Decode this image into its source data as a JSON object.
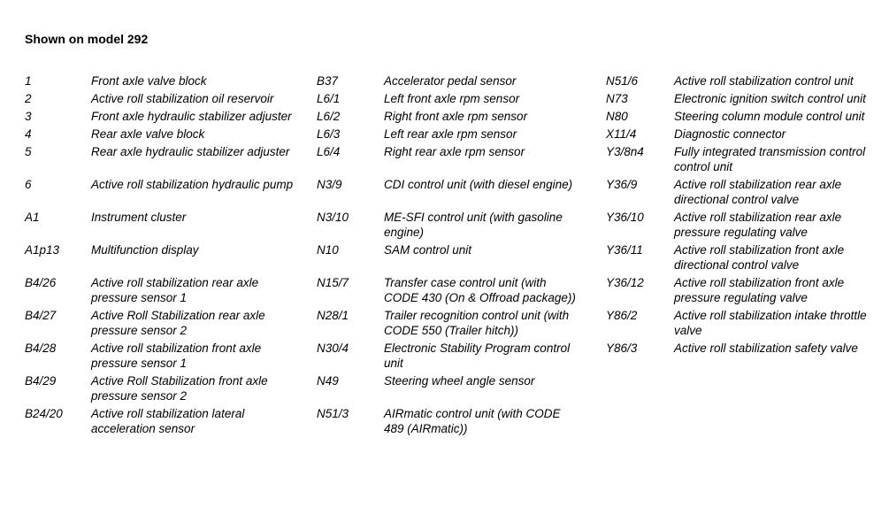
{
  "page": {
    "title": "Shown on model 292"
  },
  "legend": {
    "rows": [
      [
        {
          "code": "1",
          "desc": "Front axle valve block"
        },
        {
          "code": "B37",
          "desc": "Accelerator pedal sensor"
        },
        {
          "code": "N51/6",
          "desc": "Active roll stabilization control unit"
        }
      ],
      [
        {
          "code": "2",
          "desc": "Active roll stabilization oil reservoir"
        },
        {
          "code": "L6/1",
          "desc": "Left front axle rpm sensor"
        },
        {
          "code": "N73",
          "desc": "Electronic ignition switch control unit"
        }
      ],
      [
        {
          "code": "3",
          "desc": "Front axle hydraulic stabilizer adjuster"
        },
        {
          "code": "L6/2",
          "desc": "Right front axle rpm sensor"
        },
        {
          "code": "N80",
          "desc": "Steering column module control unit"
        }
      ],
      [
        {
          "code": "4",
          "desc": "Rear axle valve block"
        },
        {
          "code": "L6/3",
          "desc": "Left rear axle rpm sensor"
        },
        {
          "code": "X11/4",
          "desc": "Diagnostic connector"
        }
      ],
      [
        {
          "code": "5",
          "desc": "Rear axle hydraulic stabilizer adjuster"
        },
        {
          "code": "L6/4",
          "desc": "Right rear axle rpm sensor"
        },
        {
          "code": "Y3/8n4",
          "desc": "Fully integrated transmission control control unit"
        }
      ],
      [
        {
          "code": "6",
          "desc": "Active roll stabilization hydraulic pump"
        },
        {
          "code": "N3/9",
          "desc": "CDI control unit (with diesel engine)"
        },
        {
          "code": "Y36/9",
          "desc": "Active roll stabilization rear axle directional control valve"
        }
      ],
      [
        {
          "code": "A1",
          "desc": "Instrument cluster"
        },
        {
          "code": "N3/10",
          "desc": "ME-SFI control unit (with gasoline engine)"
        },
        {
          "code": "Y36/10",
          "desc": "Active roll stabilization rear axle pressure regulating valve"
        }
      ],
      [
        {
          "code": "A1p13",
          "desc": "Multifunction display"
        },
        {
          "code": "N10",
          "desc": "SAM control unit"
        },
        {
          "code": "Y36/11",
          "desc": "Active roll stabilization front axle directional control valve"
        }
      ],
      [
        {
          "code": "B4/26",
          "desc": "Active roll stabilization rear axle pressure sensor 1"
        },
        {
          "code": "N15/7",
          "desc": "Transfer case control unit (with CODE 430 (On & Offroad package))"
        },
        {
          "code": "Y36/12",
          "desc": "Active roll stabilization front axle pressure regulating valve"
        }
      ],
      [
        {
          "code": "B4/27",
          "desc": "Active Roll Stabilization rear axle pressure sensor 2"
        },
        {
          "code": "N28/1",
          "desc": "Trailer recognition control unit (with CODE 550 (Trailer hitch))"
        },
        {
          "code": "Y86/2",
          "desc": "Active roll stabilization intake throttle valve"
        }
      ],
      [
        {
          "code": "B4/28",
          "desc": "Active roll stabilization front axle pressure sensor 1"
        },
        {
          "code": "N30/4",
          "desc": "Electronic Stability Program control unit"
        },
        {
          "code": "Y86/3",
          "desc": "Active roll stabilization safety valve"
        }
      ],
      [
        {
          "code": "B4/29",
          "desc": "Active Roll Stabilization front axle pressure sensor 2"
        },
        {
          "code": "N49",
          "desc": "Steering wheel angle sensor"
        },
        null
      ],
      [
        {
          "code": "B24/20",
          "desc": "Active roll stabilization lateral acceleration sensor"
        },
        {
          "code": "N51/3",
          "desc": "AIRmatic control unit (with CODE 489 (AIRmatic))"
        },
        null
      ]
    ]
  }
}
